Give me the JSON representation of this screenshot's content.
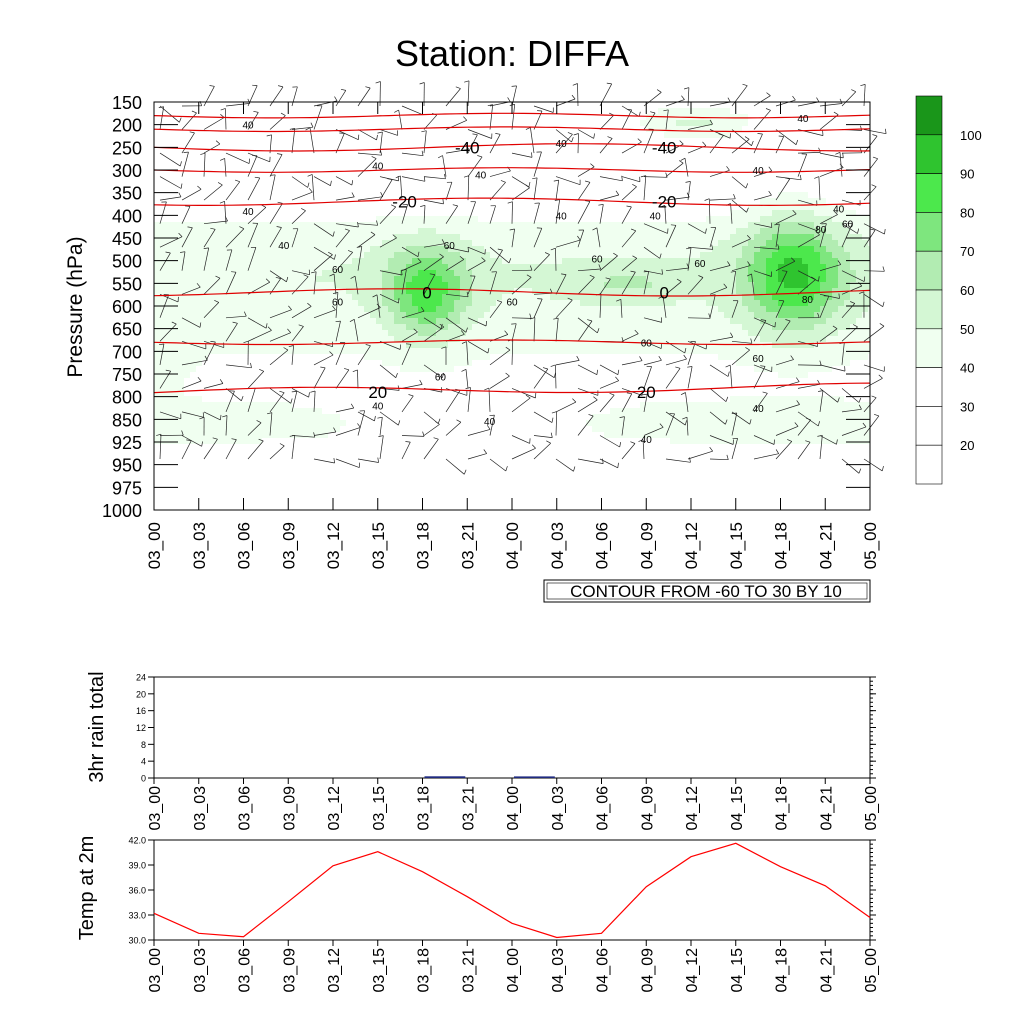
{
  "title": "Station: DIFFA",
  "note": "CONTOUR FROM -60 TO 30 BY 10",
  "colors": {
    "fill_levels": [
      "#ffffff",
      "#ffffff",
      "#ffffff",
      "#f0fff0",
      "#d4f7d4",
      "#b2ecb2",
      "#7ee67e",
      "#4ce84c",
      "#2fc42f",
      "#1a961a"
    ],
    "isotherm": "#e00000",
    "temp_line": "#ff0000",
    "rain_bar": "#1f2a80"
  },
  "chart_data": [
    {
      "type": "heatmap",
      "name": "cross-section",
      "title": "Station: DIFFA",
      "ylabel": "Pressure (hPa)",
      "xlabel": "",
      "pressure_levels": [
        150,
        200,
        250,
        300,
        350,
        400,
        450,
        500,
        550,
        600,
        650,
        700,
        750,
        800,
        850,
        925,
        950,
        975,
        1000
      ],
      "x_ticks": [
        "03_00",
        "03_03",
        "03_06",
        "03_09",
        "03_12",
        "03_15",
        "03_18",
        "03_21",
        "04_00",
        "04_03",
        "04_06",
        "04_09",
        "04_12",
        "04_15",
        "04_18",
        "04_21",
        "05_00"
      ],
      "fill_variable_colorbar": {
        "levels": [
          20,
          30,
          40,
          50,
          60,
          70,
          80,
          90,
          100
        ],
        "labels": [
          "20",
          "30",
          "40",
          "50",
          "60",
          "70",
          "80",
          "90",
          "100"
        ]
      },
      "humidity_contour_labels": [
        {
          "value": "40",
          "x_index": 2.1,
          "pressure": 200
        },
        {
          "value": "40",
          "x_index": 5.0,
          "pressure": 290
        },
        {
          "value": "40",
          "x_index": 9.1,
          "pressure": 240
        },
        {
          "value": "40",
          "x_index": 7.3,
          "pressure": 310
        },
        {
          "value": "40",
          "x_index": 14.5,
          "pressure": 185
        },
        {
          "value": "40",
          "x_index": 13.5,
          "pressure": 300
        },
        {
          "value": "40",
          "x_index": 15.3,
          "pressure": 385
        },
        {
          "value": "40",
          "x_index": 9.1,
          "pressure": 400
        },
        {
          "value": "40",
          "x_index": 11.2,
          "pressure": 400
        },
        {
          "value": "40",
          "x_index": 2.1,
          "pressure": 390
        },
        {
          "value": "40",
          "x_index": 2.9,
          "pressure": 465
        },
        {
          "value": "40",
          "x_index": 5.0,
          "pressure": 820
        },
        {
          "value": "40",
          "x_index": 7.5,
          "pressure": 855
        },
        {
          "value": "40",
          "x_index": 11.0,
          "pressure": 915
        },
        {
          "value": "40",
          "x_index": 13.5,
          "pressure": 825
        },
        {
          "value": "60",
          "x_index": 4.1,
          "pressure": 518
        },
        {
          "value": "60",
          "x_index": 4.1,
          "pressure": 590
        },
        {
          "value": "60",
          "x_index": 6.6,
          "pressure": 465
        },
        {
          "value": "60",
          "x_index": 8.0,
          "pressure": 590
        },
        {
          "value": "60",
          "x_index": 9.9,
          "pressure": 495
        },
        {
          "value": "60",
          "x_index": 12.2,
          "pressure": 505
        },
        {
          "value": "60",
          "x_index": 11.0,
          "pressure": 680
        },
        {
          "value": "60",
          "x_index": 6.4,
          "pressure": 755
        },
        {
          "value": "60",
          "x_index": 13.5,
          "pressure": 715
        },
        {
          "value": "60",
          "x_index": 15.5,
          "pressure": 418
        },
        {
          "value": "80",
          "x_index": 14.9,
          "pressure": 430
        },
        {
          "value": "80",
          "x_index": 14.6,
          "pressure": 585
        }
      ],
      "isotherms": [
        {
          "label": "-40",
          "pressure": 250,
          "label_x_index": [
            7.0,
            11.4
          ]
        },
        {
          "label": "-20",
          "pressure": 370,
          "label_x_index": [
            5.6,
            11.4
          ]
        },
        {
          "label": "0",
          "pressure": 570,
          "label_x_index": [
            6.1,
            11.4
          ]
        },
        {
          "label": "20",
          "pressure": 790,
          "label_x_index": [
            5.0,
            11.0
          ]
        }
      ]
    },
    {
      "type": "bar",
      "name": "rain",
      "ylabel": "3hr rain total",
      "ylim": [
        0,
        24
      ],
      "y_ticks": [
        "0",
        "4",
        "8",
        "12",
        "16",
        "20",
        "24"
      ],
      "categories": [
        "03_00",
        "03_03",
        "03_06",
        "03_09",
        "03_12",
        "03_15",
        "03_18",
        "03_21",
        "04_00",
        "04_03",
        "04_06",
        "04_09",
        "04_12",
        "04_15",
        "04_18",
        "04_21",
        "05_00"
      ],
      "values": [
        0,
        0,
        0,
        0,
        0,
        0,
        0.4,
        0,
        0.2,
        0,
        0,
        0,
        0,
        0,
        0,
        0,
        0
      ]
    },
    {
      "type": "line",
      "name": "temperature",
      "ylabel": "Temp at 2m",
      "ylim": [
        30.0,
        42.0
      ],
      "y_ticks": [
        "30.0",
        "33.0",
        "36.0",
        "39.0",
        "42.0"
      ],
      "categories": [
        "03_00",
        "03_03",
        "03_06",
        "03_09",
        "03_12",
        "03_15",
        "03_18",
        "03_21",
        "04_00",
        "04_03",
        "04_06",
        "04_09",
        "04_12",
        "04_15",
        "04_18",
        "04_21",
        "05_00"
      ],
      "values": [
        33.2,
        30.8,
        30.4,
        34.6,
        38.9,
        40.6,
        38.2,
        35.2,
        32.0,
        30.3,
        30.8,
        36.4,
        40.0,
        41.6,
        38.8,
        36.5,
        32.7
      ]
    }
  ]
}
